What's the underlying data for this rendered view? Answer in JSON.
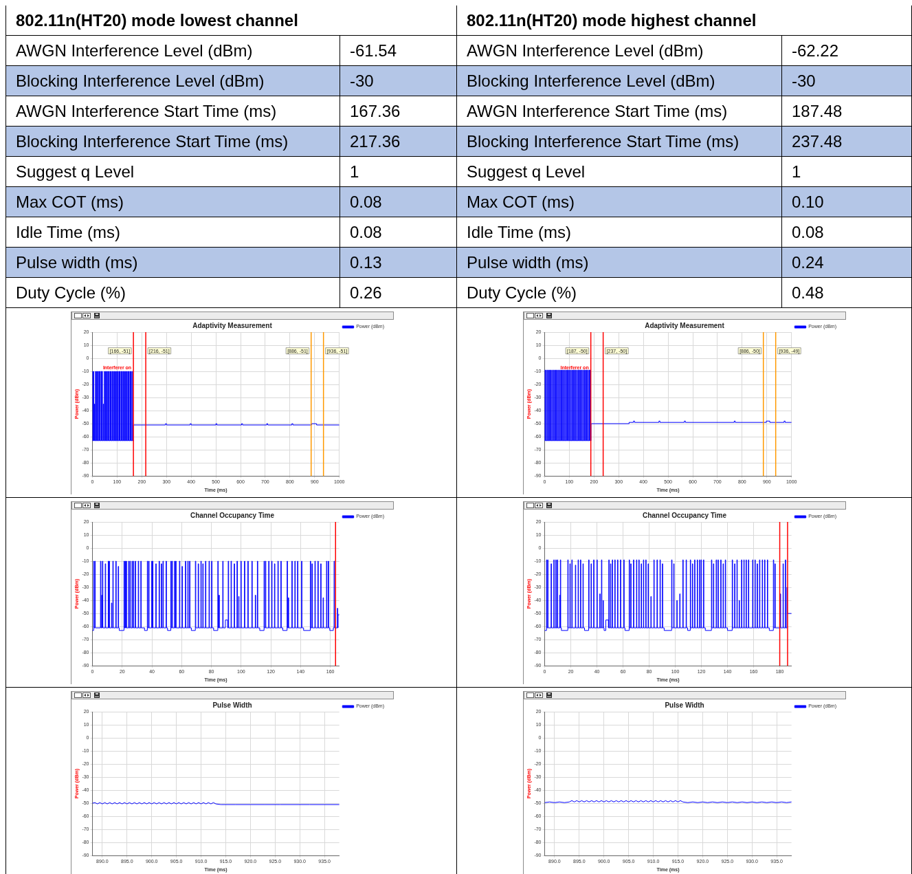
{
  "chart_data": [
    {
      "type": "other",
      "title": "802.11n(HT20) mode lowest channel",
      "annotations": [
        "AWGN Interference Level (dBm)",
        "-61.54",
        "Blocking Interference Level (dBm)",
        "-30",
        "AWGN Interference Start Time (ms)",
        "167.36",
        "Blocking Interference Start Time (ms)",
        "217.36",
        "Suggest q Level",
        "1",
        "Max COT (ms)",
        "0.08",
        "Idle Time (ms)",
        "0.08",
        "Pulse width (ms)",
        "0.13",
        "Duty Cycle (%)",
        "0.26"
      ]
    },
    {
      "type": "other",
      "title": "802.11n(HT20) mode highest channel",
      "annotations": [
        "AWGN Interference Level (dBm)",
        "-62.22",
        "Blocking Interference Level (dBm)",
        "-30",
        "AWGN Interference Start Time (ms)",
        "187.48",
        "Blocking Interference Start Time (ms)",
        "237.48",
        "Suggest q Level",
        "1",
        "Max COT (ms)",
        "0.10",
        "Idle Time (ms)",
        "0.08",
        "Pulse width (ms)",
        "0.24",
        "Duty Cycle (%)",
        "0.48"
      ]
    },
    {
      "type": "step",
      "title": "Adaptivity Measurement",
      "xlabel": "Time (ms)",
      "ylabel": "Power (dBm)",
      "xlim": [
        0,
        1000
      ],
      "xticks": [
        0,
        100,
        200,
        300,
        400,
        500,
        600,
        700,
        800,
        900,
        1000
      ],
      "ylim": [
        -90,
        20
      ],
      "yticks": [
        20,
        10,
        0,
        -10,
        -20,
        -30,
        -40,
        -50,
        -60,
        -70,
        -80,
        -90
      ],
      "grid": true,
      "legend": "top right",
      "series": [
        {
          "name": "Power (dBm)",
          "color": "#0000ff",
          "x": [
            0,
            0.5,
            2,
            4,
            5.5,
            8,
            9.5,
            12,
            13.5,
            17,
            18.5,
            21,
            22.5,
            26,
            27.5,
            30,
            31.5,
            35,
            36.5,
            39,
            40.5,
            44,
            45.5,
            48,
            49.5,
            53,
            54.5,
            57,
            58.5,
            62,
            63.5,
            66,
            67.5,
            71,
            72.5,
            75,
            76.5,
            80,
            81.5,
            84,
            85.5,
            89,
            90.5,
            93,
            94.5,
            98,
            99.5,
            102,
            103.5,
            107,
            108.5,
            111,
            112.5,
            116,
            117.5,
            120,
            121.5,
            125,
            126.5,
            129,
            130.5,
            134,
            135.5,
            138,
            139.5,
            143,
            144.5,
            147,
            148.5,
            152,
            153.5,
            156,
            157.5,
            161,
            162.5,
            166,
            296,
            300,
            396,
            400,
            500,
            504,
            604,
            608,
            706,
            710,
            808,
            812,
            888,
            908,
            1000
          ],
          "values": [
            -63,
            -10,
            -63,
            -10,
            -63,
            -35,
            -63,
            -10,
            -63,
            -10,
            -63,
            -10,
            -63,
            -10,
            -63,
            -10,
            -63,
            -10,
            -63,
            -10,
            -63,
            -35,
            -63,
            -10,
            -63,
            -10,
            -63,
            -10,
            -63,
            -10,
            -63,
            -10,
            -63,
            -10,
            -63,
            -10,
            -63,
            -10,
            -63,
            -10,
            -63,
            -10,
            -63,
            -10,
            -63,
            -10,
            -63,
            -10,
            -63,
            -10,
            -63,
            -10,
            -63,
            -10,
            -63,
            -10,
            -63,
            -10,
            -63,
            -10,
            -63,
            -10,
            -63,
            -10,
            -63,
            -10,
            -63,
            -10,
            -63,
            -10,
            -63,
            -10,
            -63,
            -10,
            -63,
            -51,
            -50,
            -51,
            -50,
            -51,
            -50,
            -51,
            -50,
            -51,
            -50,
            -51,
            -50,
            -51,
            -50,
            -51,
            -51
          ]
        }
      ],
      "ref_lines": [
        {
          "axis": "x",
          "value": 166,
          "label": "[166, -51]",
          "color": "#ff0000"
        },
        {
          "axis": "x",
          "value": 216,
          "label": "[216, -51]",
          "color": "#ff0000"
        },
        {
          "axis": "x",
          "value": 886,
          "label": "[886, -51]",
          "color": "#ff9900"
        },
        {
          "axis": "x",
          "value": 936,
          "label": "[936, -51]",
          "color": "#ff9900"
        }
      ],
      "annotations": [
        {
          "text": "Interferer on",
          "x": 166,
          "y": -10
        }
      ]
    },
    {
      "type": "step",
      "title": "Adaptivity Measurement",
      "xlabel": "Time (ms)",
      "ylabel": "Power (dBm)",
      "xlim": [
        0,
        1000
      ],
      "xticks": [
        0,
        100,
        200,
        300,
        400,
        500,
        600,
        700,
        800,
        900,
        1000
      ],
      "ylim": [
        -90,
        20
      ],
      "yticks": [
        20,
        10,
        0,
        -10,
        -20,
        -30,
        -40,
        -50,
        -60,
        -70,
        -80,
        -90
      ],
      "grid": true,
      "legend": "top right",
      "series": [
        {
          "name": "Power (dBm)",
          "color": "#0000ff",
          "x": [
            0,
            0.5,
            2,
            5,
            6.5,
            10,
            11.5,
            15,
            16.5,
            20,
            21.5,
            25,
            26.5,
            30,
            31.5,
            35,
            36.5,
            40,
            41.5,
            45,
            46.5,
            50,
            51.5,
            55,
            56.5,
            60,
            61.5,
            65,
            66.5,
            70,
            71.5,
            75,
            76.5,
            80,
            81.5,
            85,
            86.5,
            90,
            91.5,
            95,
            96.5,
            100,
            101.5,
            105,
            106.5,
            110,
            111.5,
            115,
            116.5,
            120,
            121.5,
            125,
            126.5,
            130,
            131.5,
            135,
            136.5,
            140,
            141.5,
            145,
            146.5,
            150,
            151.5,
            155,
            156.5,
            160,
            161.5,
            165,
            166.5,
            170,
            171.5,
            175,
            176.5,
            180,
            181.5,
            184,
            185.5,
            188,
            342,
            360,
            364,
            463,
            467,
            566,
            570,
            768,
            772,
            898,
            912,
            970,
            974,
            1000
          ],
          "values": [
            -63,
            -9,
            -63,
            -9,
            -63,
            -9,
            -63,
            -9,
            -63,
            -9,
            -63,
            -9,
            -63,
            -9,
            -63,
            -9,
            -63,
            -9,
            -63,
            -9,
            -63,
            -9,
            -63,
            -9,
            -63,
            -9,
            -63,
            -9,
            -63,
            -9,
            -63,
            -9,
            -63,
            -9,
            -63,
            -9,
            -63,
            -9,
            -63,
            -9,
            -63,
            -9,
            -63,
            -9,
            -63,
            -9,
            -63,
            -9,
            -63,
            -9,
            -63,
            -9,
            -63,
            -9,
            -63,
            -9,
            -63,
            -9,
            -63,
            -9,
            -63,
            -9,
            -63,
            -9,
            -63,
            -9,
            -63,
            -9,
            -63,
            -9,
            -63,
            -9,
            -63,
            -9,
            -63,
            -9,
            -63,
            -50,
            -49,
            -48,
            -49,
            -48,
            -49,
            -48,
            -49,
            -48,
            -49,
            -48,
            -49,
            -48,
            -49,
            -49
          ]
        }
      ],
      "ref_lines": [
        {
          "axis": "x",
          "value": 187,
          "label": "[187, -50]",
          "color": "#ff0000"
        },
        {
          "axis": "x",
          "value": 237,
          "label": "[237, -50]",
          "color": "#ff0000"
        },
        {
          "axis": "x",
          "value": 886,
          "label": "[886, -50]",
          "color": "#ff9900"
        },
        {
          "axis": "x",
          "value": 936,
          "label": "[936, -49]",
          "color": "#ff9900"
        }
      ],
      "annotations": [
        {
          "text": "Interferer on",
          "x": 187,
          "y": -10
        }
      ]
    },
    {
      "type": "step",
      "title": "Channel Occupancy Time",
      "xlabel": "Time (ms)",
      "ylabel": "Power (dBm)",
      "xlim": [
        0,
        166
      ],
      "xticks": [
        0,
        20,
        40,
        60,
        80,
        100,
        120,
        140,
        160
      ],
      "ylim": [
        -90,
        20
      ],
      "yticks": [
        20,
        10,
        0,
        -10,
        -20,
        -30,
        -40,
        -50,
        -60,
        -70,
        -80,
        -90
      ],
      "grid": true,
      "legend": "top right",
      "series": [
        {
          "name": "Power (dBm)",
          "color": "#0000ff",
          "x": [
            0,
            0.8,
            1.1,
            1.6,
            1.9,
            5.4,
            5.7,
            6.2,
            6.5,
            6.7,
            7,
            8.6,
            8.9,
            10.6,
            10.9,
            11.2,
            11.5,
            12.8,
            13.1,
            13.7,
            14,
            15.7,
            16,
            17.3,
            17.6,
            18,
            21.2,
            21.5,
            21.9,
            22.2,
            22.7,
            23,
            24.3,
            24.6,
            25.2,
            25.5,
            26.6,
            26.9,
            27.5,
            27.8,
            28.8,
            29.1,
            30.8,
            31.1,
            32.5,
            32.8,
            35,
            36.9,
            37.2,
            37.8,
            38.1,
            39.8,
            40.1,
            40.4,
            40.7,
            42.6,
            42.9,
            44.8,
            45.1,
            46.3,
            46.6,
            47.4,
            47.7,
            49.5,
            49.8,
            50.5,
            52.7,
            53,
            53.5,
            53.8,
            55.2,
            55.5,
            56,
            56.3,
            58.5,
            58.8,
            60.2,
            60.5,
            62.5,
            62.8,
            64.1,
            64.4,
            65.3,
            65.6,
            66.5,
            69.2,
            69.5,
            71.1,
            71.4,
            72.9,
            73.2,
            74.2,
            74.5,
            76,
            76.3,
            78.4,
            78.7,
            80.1,
            80.4,
            81.5,
            84.3,
            84.6,
            85.1,
            85.4,
            87.6,
            87.9,
            89.4,
            90.9,
            91.3,
            91.6,
            93.2,
            93.5,
            95.3,
            95.6,
            97.2,
            97.5,
            98.3,
            98.6,
            99.8,
            100.1,
            102.2,
            102.5,
            104.5,
            104.8,
            107.2,
            107.5,
            109.5,
            109.8,
            110.9,
            111.2,
            112.5,
            115.4,
            115.7,
            116.3,
            116.6,
            118.5,
            118.8,
            120.5,
            120.8,
            122.4,
            122.7,
            124.7,
            125,
            126.7,
            127,
            128,
            130.9,
            131.2,
            131.7,
            132,
            134.1,
            134.4,
            136.1,
            136.4,
            137.9,
            138.2,
            140.6,
            140.9,
            142,
            146.5,
            146.8,
            147.6,
            147.9,
            149.6,
            149.9,
            151.6,
            151.9,
            153.5,
            153.8,
            155.1,
            155.4,
            157.4,
            157.7,
            158.6,
            158.9,
            159.6,
            162,
            162.5,
            162.8,
            164.7,
            165,
            165.2,
            166
          ],
          "values": [
            -63,
            -10,
            -61,
            -10,
            -61,
            -10,
            -61,
            -36,
            -61,
            -10,
            -61,
            -12,
            -61,
            -10,
            -61,
            -10,
            -61,
            -42,
            -61,
            -10,
            -61,
            -10,
            -61,
            -14,
            -61,
            -63,
            -10,
            -61,
            -10,
            -61,
            -10,
            -61,
            -10,
            -61,
            -10,
            -61,
            -10,
            -61,
            -10,
            -61,
            -10,
            -61,
            -10,
            -61,
            -10,
            -61,
            -63,
            -10,
            -61,
            -10,
            -61,
            -10,
            -61,
            -10,
            -61,
            -12,
            -61,
            -10,
            -61,
            -12,
            -61,
            -10,
            -61,
            -10,
            -61,
            -63,
            -10,
            -61,
            -10,
            -61,
            -10,
            -61,
            -10,
            -61,
            -10,
            -61,
            -14,
            -61,
            -10,
            -61,
            -10,
            -61,
            -10,
            -61,
            -63,
            -10,
            -61,
            -12,
            -61,
            -10,
            -61,
            -12,
            -61,
            -10,
            -61,
            -10,
            -61,
            -10,
            -61,
            -63,
            -10,
            -61,
            -36,
            -61,
            -10,
            -61,
            -55,
            -61,
            -10,
            -61,
            -10,
            -61,
            -12,
            -61,
            -10,
            -61,
            -37,
            -61,
            -10,
            -61,
            -10,
            -61,
            -10,
            -61,
            -10,
            -61,
            -36,
            -61,
            -10,
            -61,
            -63,
            -10,
            -61,
            -10,
            -61,
            -10,
            -61,
            -10,
            -61,
            -12,
            -61,
            -10,
            -61,
            -10,
            -61,
            -63,
            -10,
            -61,
            -38,
            -61,
            -10,
            -61,
            -10,
            -61,
            -10,
            -61,
            -10,
            -61,
            -63,
            -10,
            -61,
            -12,
            -61,
            -10,
            -61,
            -10,
            -61,
            -12,
            -61,
            -38,
            -61,
            -10,
            -61,
            -10,
            -61,
            -63,
            -61,
            -10,
            -61,
            -46,
            -61,
            -51,
            -51
          ]
        }
      ],
      "ref_lines": [
        {
          "axis": "x",
          "value": 163.5,
          "color": "#ff0000"
        }
      ]
    },
    {
      "type": "step",
      "title": "Channel Occupancy Time",
      "xlabel": "Time (ms)",
      "ylabel": "Power (dBm)",
      "xlim": [
        0,
        189
      ],
      "xticks": [
        0,
        20,
        40,
        60,
        80,
        100,
        120,
        140,
        160,
        180
      ],
      "ylim": [
        -90,
        20
      ],
      "yticks": [
        20,
        10,
        0,
        -10,
        -20,
        -30,
        -40,
        -50,
        -60,
        -70,
        -80,
        -90
      ],
      "grid": true,
      "legend": "top right",
      "series": [
        {
          "name": "Power (dBm)",
          "color": "#0000ff",
          "x": [
            0,
            1.4,
            1.7,
            2.3,
            2.6,
            4.9,
            5.2,
            7,
            7.3,
            8.5,
            8.8,
            9.7,
            10,
            11.5,
            11.8,
            12,
            12.3,
            12.8,
            17.7,
            18,
            19.3,
            19.6,
            20.8,
            21.1,
            23.5,
            23.8,
            25.6,
            25.9,
            27.4,
            27.7,
            29.3,
            29.6,
            30.5,
            33.7,
            34,
            35.5,
            35.8,
            37.5,
            37.8,
            40,
            40.3,
            42.2,
            42.5,
            43.5,
            43.8,
            44.7,
            45,
            45.5,
            46.8,
            48.8,
            49.1,
            49.4,
            50.4,
            50.7,
            51.8,
            52.1,
            53.7,
            54,
            55.8,
            56.1,
            58,
            58.3,
            60.6,
            60.9,
            61.5,
            64.7,
            65,
            65.9,
            66.2,
            68,
            68.3,
            70.3,
            70.6,
            72.1,
            72.4,
            73.9,
            74.2,
            75.6,
            75.9,
            77.4,
            77.7,
            79.2,
            79.5,
            81.3,
            81.6,
            83.6,
            83.9,
            86,
            86.3,
            88.3,
            88.6,
            90.1,
            90.4,
            91.5,
            97.2,
            97.5,
            98.8,
            99.1,
            101.2,
            101.5,
            103.4,
            103.7,
            105.8,
            106.1,
            108.3,
            108.6,
            109.5,
            111.5,
            111.8,
            113.1,
            113.4,
            114.8,
            115.1,
            116.8,
            117.1,
            118.6,
            118.9,
            119.8,
            120.1,
            121.6,
            121.9,
            123,
            127.7,
            128,
            129.2,
            129.5,
            131.3,
            131.6,
            132.7,
            133,
            134.8,
            135.1,
            136.6,
            136.9,
            138.3,
            138.6,
            140,
            143.6,
            143.9,
            145.4,
            145.7,
            147.2,
            147.5,
            148.9,
            149.2,
            150.7,
            151,
            152.5,
            152.8,
            154.2,
            154.5,
            156,
            156.3,
            159.2,
            159.5,
            161,
            161.3,
            162.7,
            163,
            164.5,
            164.8,
            166.6,
            166.9,
            168.4,
            168.7,
            170.5,
            170.8,
            172,
            175.1,
            175.4,
            176.3,
            176.6,
            180.4,
            180.7,
            182.5,
            182.8,
            184.3,
            184.6,
            185.5,
            185.8,
            189
          ],
          "values": [
            -63,
            -9,
            -61,
            -9,
            -61,
            -12,
            -61,
            -9,
            -61,
            -9,
            -61,
            -9,
            -61,
            -36,
            -61,
            -9,
            -61,
            -63,
            -9,
            -61,
            -12,
            -61,
            -9,
            -61,
            -13,
            -61,
            -9,
            -61,
            -9,
            -61,
            -12,
            -61,
            -63,
            -9,
            -61,
            -12,
            -61,
            -9,
            -61,
            -9,
            -61,
            -35,
            -61,
            -9,
            -61,
            -40,
            -61,
            -63,
            -55,
            -61,
            -9,
            -61,
            -12,
            -61,
            -9,
            -61,
            -9,
            -61,
            -9,
            -61,
            -9,
            -61,
            -9,
            -61,
            -63,
            -9,
            -61,
            -12,
            -61,
            -9,
            -61,
            -9,
            -61,
            -9,
            -61,
            -12,
            -61,
            -9,
            -61,
            -9,
            -61,
            -12,
            -61,
            -37,
            -61,
            -9,
            -61,
            -9,
            -61,
            -9,
            -61,
            -12,
            -61,
            -63,
            -9,
            -61,
            -12,
            -61,
            -40,
            -61,
            -35,
            -61,
            -9,
            -61,
            -9,
            -61,
            -63,
            -9,
            -61,
            -12,
            -61,
            -9,
            -61,
            -9,
            -61,
            -9,
            -61,
            -9,
            -61,
            -9,
            -61,
            -63,
            -9,
            -61,
            -12,
            -61,
            -9,
            -61,
            -9,
            -61,
            -9,
            -61,
            -12,
            -61,
            -9,
            -61,
            -63,
            -9,
            -61,
            -12,
            -61,
            -9,
            -61,
            -40,
            -61,
            -9,
            -61,
            -9,
            -61,
            -9,
            -61,
            -9,
            -61,
            -9,
            -61,
            -9,
            -61,
            -12,
            -61,
            -9,
            -61,
            -9,
            -61,
            -9,
            -61,
            -9,
            -61,
            -63,
            -9,
            -61,
            -12,
            -61,
            -35,
            -61,
            -12,
            -61,
            -9,
            -61,
            -30,
            -50,
            -50
          ]
        }
      ],
      "ref_lines": [
        {
          "axis": "x",
          "value": 180,
          "color": "#ff0000"
        },
        {
          "axis": "x",
          "value": 186,
          "color": "#ff0000"
        }
      ]
    },
    {
      "type": "line",
      "title": "Pulse Width",
      "xlabel": "Time (ms)",
      "ylabel": "Power (dBm)",
      "xlim": [
        888,
        938
      ],
      "xticks": [
        {
          "value": 890,
          "label": "890.0"
        },
        {
          "value": 895,
          "label": "895.0"
        },
        {
          "value": 900,
          "label": "900.0"
        },
        {
          "value": 905,
          "label": "905.0"
        },
        {
          "value": 910,
          "label": "910.0"
        },
        {
          "value": 915,
          "label": "915.0"
        },
        {
          "value": 920,
          "label": "920.0"
        },
        {
          "value": 925,
          "label": "925.0"
        },
        {
          "value": 930,
          "label": "930.0"
        },
        {
          "value": 935,
          "label": "935.0"
        }
      ],
      "ylim": [
        -90,
        20
      ],
      "yticks": [
        20,
        10,
        0,
        -10,
        -20,
        -30,
        -40,
        -50,
        -60,
        -70,
        -80,
        -90
      ],
      "grid": true,
      "legend": "top right",
      "series": [
        {
          "name": "Power (dBm)",
          "color": "#0000ff",
          "x": [
            888,
            888.5,
            889,
            889.5,
            890,
            890.5,
            891,
            891.5,
            892,
            892.5,
            893,
            893.5,
            894,
            894.5,
            895,
            895.5,
            896,
            896.5,
            897,
            897.5,
            898,
            898.5,
            899,
            899.5,
            900,
            900.5,
            901,
            901.5,
            902,
            902.5,
            903,
            903.5,
            904,
            904.5,
            905,
            905.5,
            906,
            906.5,
            907,
            907.5,
            908,
            908.5,
            909,
            909.5,
            910,
            910.5,
            911,
            911.5,
            912,
            912.5,
            913,
            914,
            917,
            920,
            923,
            926,
            929,
            932,
            935,
            938
          ],
          "values": [
            -50,
            -49.5,
            -50.5,
            -49.5,
            -50.5,
            -49.5,
            -50.5,
            -49.5,
            -50.5,
            -49.5,
            -50.5,
            -49.5,
            -50.5,
            -49.5,
            -50.5,
            -49.5,
            -50.5,
            -49.5,
            -50.5,
            -49.5,
            -50.5,
            -49.5,
            -50.5,
            -49.5,
            -50.5,
            -49.5,
            -50.5,
            -49.5,
            -50.5,
            -49.5,
            -50.5,
            -49.5,
            -50.5,
            -49.5,
            -50.5,
            -49.5,
            -50.5,
            -49.5,
            -50.5,
            -49.5,
            -50.5,
            -49.5,
            -50.5,
            -49.5,
            -50.5,
            -49.5,
            -50.5,
            -49.5,
            -50.5,
            -49.5,
            -50.5,
            -51,
            -51,
            -51,
            -51,
            -51,
            -51,
            -51,
            -51,
            -51
          ]
        }
      ]
    },
    {
      "type": "line",
      "title": "Pulse Width",
      "xlabel": "Time (ms)",
      "ylabel": "Power (dBm)",
      "xlim": [
        888,
        938
      ],
      "xticks": [
        {
          "value": 890,
          "label": "890.0"
        },
        {
          "value": 895,
          "label": "895.0"
        },
        {
          "value": 900,
          "label": "900.0"
        },
        {
          "value": 905,
          "label": "905.0"
        },
        {
          "value": 910,
          "label": "910.0"
        },
        {
          "value": 915,
          "label": "915.0"
        },
        {
          "value": 920,
          "label": "920.0"
        },
        {
          "value": 925,
          "label": "925.0"
        },
        {
          "value": 930,
          "label": "930.0"
        },
        {
          "value": 935,
          "label": "935.0"
        }
      ],
      "ylim": [
        -90,
        20
      ],
      "yticks": [
        20,
        10,
        0,
        -10,
        -20,
        -30,
        -40,
        -50,
        -60,
        -70,
        -80,
        -90
      ],
      "grid": true,
      "legend": "top right",
      "series": [
        {
          "name": "Power (dBm)",
          "color": "#0000ff",
          "x": [
            888,
            889,
            890,
            891,
            892,
            893,
            893.5,
            894,
            894.5,
            895,
            895.5,
            896,
            896.5,
            897,
            897.5,
            898,
            898.5,
            899,
            899.5,
            900,
            900.5,
            901,
            901.5,
            902,
            902.5,
            903,
            903.5,
            904,
            904.5,
            905,
            905.5,
            906,
            906.5,
            907,
            907.5,
            908,
            908.5,
            909,
            909.5,
            910,
            910.5,
            911,
            911.5,
            912,
            912.5,
            913,
            913.5,
            914,
            914.5,
            915,
            915.5,
            916,
            917,
            918,
            919,
            920,
            921,
            922,
            923,
            924,
            925,
            926,
            927,
            928,
            929,
            930,
            931,
            932,
            933,
            934,
            935,
            936,
            937,
            938
          ],
          "values": [
            -49.5,
            -49,
            -49.5,
            -49,
            -49.5,
            -49,
            -48,
            -49,
            -48,
            -49,
            -48,
            -49,
            -48,
            -49,
            -48,
            -49,
            -48,
            -49,
            -48,
            -49,
            -48,
            -49,
            -48,
            -49,
            -48,
            -49,
            -48,
            -49,
            -48,
            -49,
            -48,
            -49,
            -48,
            -49,
            -48,
            -49,
            -48,
            -49,
            -48,
            -49,
            -48,
            -49,
            -48,
            -49,
            -48,
            -49,
            -48,
            -49,
            -48,
            -49,
            -48,
            -49,
            -49.5,
            -49,
            -49.5,
            -49,
            -49.5,
            -49,
            -49.5,
            -49,
            -49.5,
            -49,
            -49.5,
            -49,
            -49.5,
            -49,
            -49.5,
            -49,
            -49.5,
            -49,
            -49.5,
            -49,
            -49.5,
            -49
          ]
        }
      ]
    }
  ]
}
